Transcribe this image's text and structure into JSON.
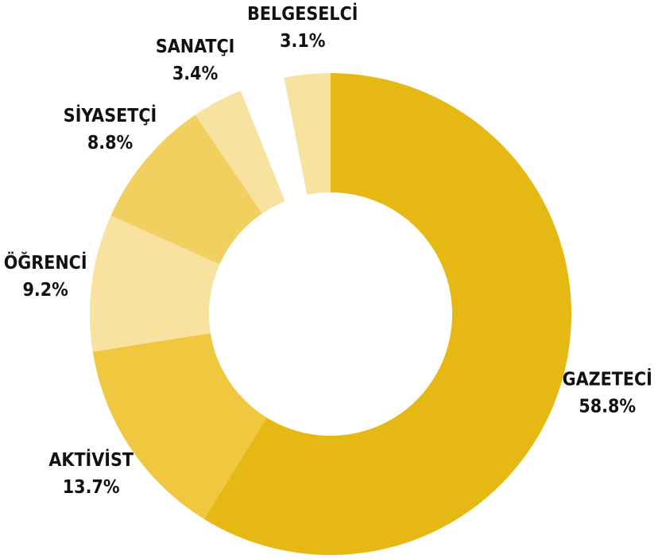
{
  "chart_data": {
    "type": "donut",
    "categories": [
      "GAZETECİ",
      "AKTİVİST",
      "ÖĞRENCİ",
      "SİYASETÇİ",
      "SANATÇI",
      null,
      "BELGESELCİ"
    ],
    "values": [
      58.8,
      13.7,
      9.2,
      8.8,
      3.4,
      3.0,
      3.1
    ],
    "value_labels": [
      "58.8%",
      "13.7%",
      "9.2%",
      "8.8%",
      "3.4%",
      null,
      "3.1%"
    ],
    "colors": [
      "#e6b813",
      "#efc840",
      "#f7e2a0",
      "#f2d060",
      "#f7e2a0",
      "#ffffff",
      "#f7e2a0"
    ]
  }
}
